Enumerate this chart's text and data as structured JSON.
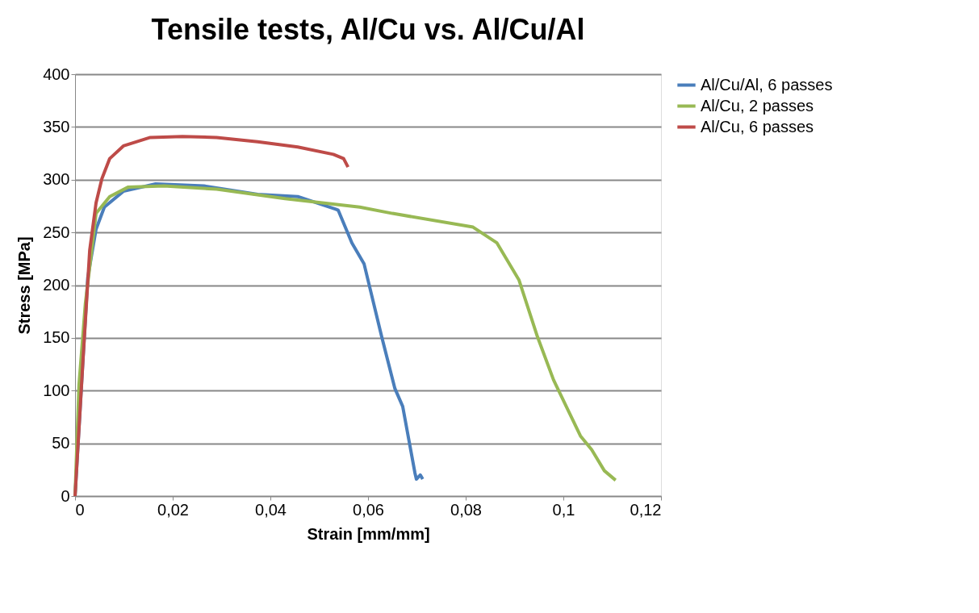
{
  "chart_data": {
    "type": "line",
    "title": "Tensile tests, Al/Cu vs. Al/Cu/Al",
    "xlabel": "Strain [mm/mm]",
    "ylabel": "Stress [MPa]",
    "xlim": [
      0,
      0.12
    ],
    "ylim": [
      0,
      400
    ],
    "xticks": [
      0,
      {
        "value": 0.02,
        "label": "0,02"
      },
      {
        "value": 0.04,
        "label": "0,04"
      },
      {
        "value": 0.06,
        "label": "0,06"
      },
      {
        "value": 0.08,
        "label": "0,08"
      },
      {
        "value": 0.1,
        "label": "0,1"
      },
      {
        "value": 0.12,
        "label": "0,12"
      }
    ],
    "yticks": [
      0,
      50,
      100,
      150,
      200,
      250,
      300,
      350,
      400
    ],
    "grid": "y",
    "legend": "right",
    "marker": "none",
    "line_style": "solid",
    "series": [
      {
        "name": "Al/Cu/Al, 6 passes",
        "color": "#4a7ebb",
        "x": [
          0,
          0.0026,
          0.0043,
          0.006,
          0.0099,
          0.0165,
          0.0264,
          0.0374,
          0.0456,
          0.0534,
          0.0539,
          0.0567,
          0.0592,
          0.0628,
          0.0655,
          0.0671,
          0.0696,
          0.0699,
          0.0707,
          0.0712
        ],
        "values": [
          0,
          207,
          253,
          274,
          289,
          296,
          294,
          286,
          284,
          272,
          271,
          240,
          220,
          151,
          102,
          85,
          22,
          16,
          20,
          16
        ]
      },
      {
        "name": "Al/Cu, 2 passes",
        "color": "#98b954",
        "x": [
          0,
          0.0008,
          0.0021,
          0.0043,
          0.0071,
          0.0109,
          0.0182,
          0.029,
          0.043,
          0.0583,
          0.065,
          0.0815,
          0.0864,
          0.0909,
          0.0947,
          0.098,
          0.1035,
          0.1058,
          0.1084,
          0.1107
        ],
        "values": [
          0,
          105,
          182,
          268,
          284,
          293,
          294,
          291,
          282,
          274,
          268,
          255,
          240,
          205,
          151,
          110,
          57,
          44,
          24,
          15
        ]
      },
      {
        "name": "Al/Cu, 6 passes",
        "color": "#be4b48",
        "x": [
          0,
          0.00165,
          0.003,
          0.0043,
          0.0055,
          0.0071,
          0.0099,
          0.0154,
          0.022,
          0.029,
          0.0374,
          0.0456,
          0.0529,
          0.055,
          0.0559
        ],
        "values": [
          0,
          131,
          233,
          278,
          301,
          320,
          332,
          340,
          341,
          340,
          336,
          331,
          324,
          320,
          312
        ]
      }
    ]
  }
}
